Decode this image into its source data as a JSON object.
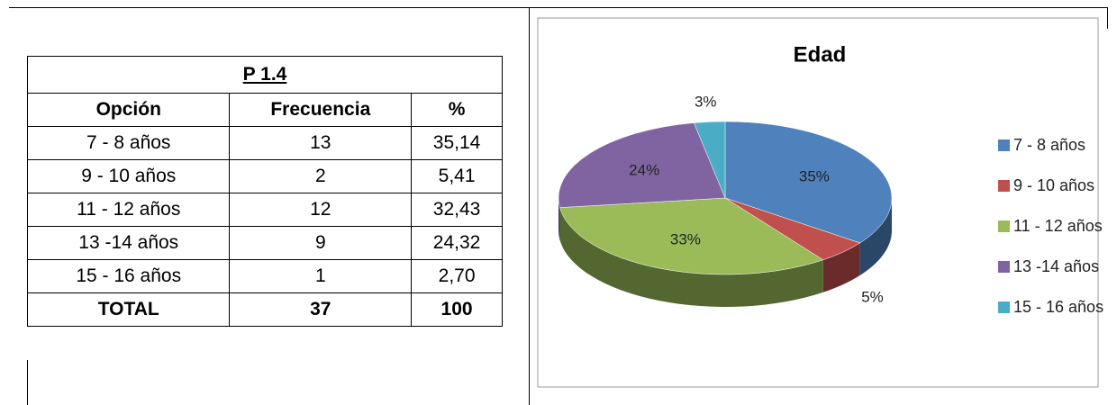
{
  "table": {
    "title": "P 1.4",
    "headers": [
      "Opción",
      "Frecuencia",
      "%"
    ],
    "rows": [
      [
        "7 - 8 años",
        "13",
        "35,14"
      ],
      [
        "9 - 10 años",
        "2",
        "5,41"
      ],
      [
        "11 - 12 años",
        "12",
        "32,43"
      ],
      [
        "13 -14 años",
        "9",
        "24,32"
      ],
      [
        "15 - 16 años",
        "1",
        "2,70"
      ]
    ],
    "total": [
      "TOTAL",
      "37",
      "100"
    ]
  },
  "chart_data": {
    "type": "pie",
    "title": "Edad",
    "categories": [
      "7 - 8 años",
      "9 - 10 años",
      "11 - 12 años",
      "13 -14 años",
      "15 - 16 años"
    ],
    "values": [
      35,
      5,
      33,
      24,
      3
    ],
    "value_labels": [
      "35%",
      "5%",
      "33%",
      "24%",
      "3%"
    ],
    "colors": [
      "#4f81bd",
      "#c0504d",
      "#9bbb59",
      "#8064a2",
      "#4bacc6"
    ],
    "legend": "right"
  }
}
